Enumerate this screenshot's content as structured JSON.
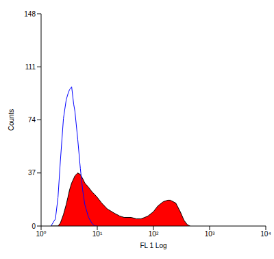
{
  "chart_data": {
    "type": "area",
    "x_label": "FL 1 Log",
    "y_label": "Counts",
    "log": "x",
    "grid": false,
    "xlim": [
      1,
      10000
    ],
    "xticks": [
      {
        "value": 1,
        "label": "10⁰"
      },
      {
        "value": 10,
        "label": "10¹"
      },
      {
        "value": 100,
        "label": "10²"
      },
      {
        "value": 1000,
        "label": "10³"
      },
      {
        "value": 10000,
        "label": "10⁴"
      }
    ],
    "ylim": [
      0,
      148
    ],
    "yticks": [
      0,
      37,
      74,
      111,
      148
    ],
    "x": [
      1.5,
      1.8,
      2,
      2.2,
      2.5,
      2.8,
      3,
      3.2,
      3.5,
      3.8,
      4,
      4.5,
      5,
      5.5,
      6,
      7,
      8,
      9,
      10,
      12,
      15,
      20,
      25,
      30,
      40,
      50,
      60,
      70,
      80,
      100,
      120,
      150,
      180,
      200,
      250,
      300,
      350,
      400,
      450
    ],
    "series": [
      {
        "type": "area",
        "color": "#ff0000",
        "values": [
          0,
          0,
          0,
          2,
          8,
          15,
          20,
          25,
          30,
          33,
          35,
          37,
          36,
          33,
          30,
          27,
          24,
          22,
          20,
          16,
          12,
          9,
          7,
          6,
          6,
          5,
          5,
          6,
          7,
          10,
          14,
          17,
          18,
          18,
          16,
          10,
          4,
          1,
          0
        ]
      },
      {
        "type": "line",
        "color": "#0000ff",
        "values": [
          0,
          5,
          20,
          45,
          75,
          88,
          92,
          95,
          97,
          85,
          80,
          60,
          40,
          25,
          15,
          6,
          2,
          0,
          0,
          null,
          null,
          null,
          null,
          null,
          null,
          null,
          null,
          null,
          null,
          null,
          null,
          null,
          null,
          null,
          null,
          null,
          null,
          null,
          null
        ]
      }
    ]
  }
}
